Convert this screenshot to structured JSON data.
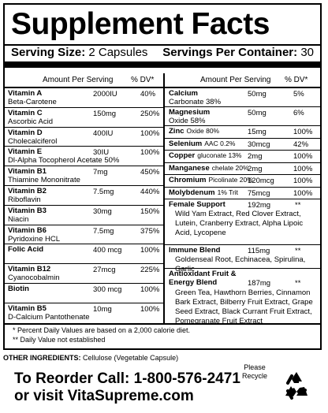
{
  "title": "Supplement Facts",
  "serving_size_label": "Serving Size:",
  "serving_size_value": "2 Capsules",
  "servings_label": "Servings Per Container:",
  "servings_value": "30",
  "col_headers": {
    "amount": "Amount Per Serving",
    "dv": "% DV*"
  },
  "left_rows": [
    {
      "name": "Vitamin A",
      "sub": "Beta-Carotene",
      "amount": "2000IU",
      "dv": "40%"
    },
    {
      "name": "Vitamin C",
      "sub": "Ascorbic Acid",
      "amount": "150mg",
      "dv": "250%"
    },
    {
      "name": "Vitamin D",
      "sub": "Cholecalciferol",
      "amount": "400IU",
      "dv": "100%"
    },
    {
      "name": "Vitamin E",
      "sub": "Dl-Alpha Tocopherol Acetate 50%",
      "amount": "30IU",
      "dv": "100%"
    },
    {
      "name": "Vitamin B1",
      "sub": "Thiamine Mononitrate",
      "amount": "7mg",
      "dv": "450%"
    },
    {
      "name": "Vitamin B2",
      "sub": "Riboflavin",
      "amount": "7.5mg",
      "dv": "440%"
    },
    {
      "name": "Vitamin B3",
      "sub": "Niacin",
      "amount": "30mg",
      "dv": "150%"
    },
    {
      "name": "Vitamin B6",
      "sub": "Pyridoxine HCL",
      "amount": "7.5mg",
      "dv": "375%"
    },
    {
      "name": "Folic Acid",
      "sub": "",
      "amount": "400 mcg",
      "dv": "100%"
    },
    {
      "name": "Vitamin B12",
      "sub": "Cyanocobalmin",
      "amount": "27mcg",
      "dv": "225%"
    },
    {
      "name": "Biotin",
      "sub": "",
      "amount": "300 mcg",
      "dv": "100%"
    },
    {
      "name": "Vitamin B5",
      "sub": "D-Calcium Pantothenate",
      "amount": "10mg",
      "dv": "100%"
    }
  ],
  "right_rows": [
    {
      "name": "Calcium",
      "sub": "Carbonate 38%",
      "amount": "50mg",
      "dv": "5%"
    },
    {
      "name": "Magnesium",
      "sub": "Oxide 58%",
      "amount": "50mg",
      "dv": "6%"
    },
    {
      "name": "Zinc",
      "inline": "Oxide 80%",
      "amount": "15mg",
      "dv": "100%"
    },
    {
      "name": "Selenium",
      "inline": "AAC 0.2%",
      "amount": "30mcg",
      "dv": "42%"
    },
    {
      "name": "Copper",
      "inline": "gluconate 13%",
      "amount": "2mg",
      "dv": "100%"
    },
    {
      "name": "Manganese",
      "inline": "chelate 20%",
      "amount": "2mg",
      "dv": "100%"
    },
    {
      "name": "Chromium",
      "inline": "Picolinate 20%",
      "amount": "120mcg",
      "dv": "100%"
    },
    {
      "name": "Molybdenum",
      "inline": "1% Trit",
      "amount": "75mcg",
      "dv": "100%"
    }
  ],
  "blends": [
    {
      "name": "Female Support",
      "amount": "192mg",
      "dv": "**",
      "desc": "Wild Yam Extract, Red Clover Extract, Lutein, Cranberry Extract, Alpha Lipoic Acid, Lycopene"
    },
    {
      "name": "Immune Blend",
      "amount": "115mg",
      "dv": "**",
      "desc": "Goldenseal Root, Echinacea, Spirulina, Garlic"
    },
    {
      "name": "Antioxidant Fruit & Energy Blend",
      "amount": "187mg",
      "dv": "**",
      "desc": "Green Tea, Hawthorn Berries, Cinnamon Bark Extract, Bilberry Fruit Extract, Grape Seed Extract, Black Currant Fruit Extract, Pomegranate Fruit Extract"
    }
  ],
  "footnote1": "*  Percent Daily Values are based on a 2,000 calorie diet.",
  "footnote2": "**  Daily Value not established",
  "other_label": "OTHER INGREDIENTS:",
  "other_value": "Cellulose (Vegetable Capsule)",
  "reorder_line1": "To Reorder Call: 1-800-576-2471",
  "reorder_line2": "or visit VitaSupreme.com",
  "please_recycle": "Please Recycle",
  "recycle_icon": "recycle-icon"
}
